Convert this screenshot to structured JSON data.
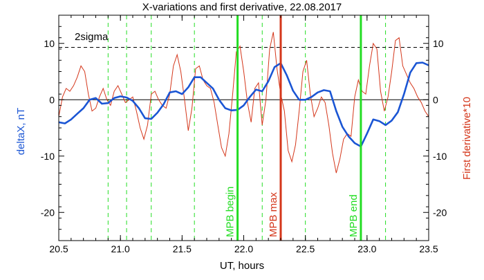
{
  "chart_data": {
    "type": "line",
    "title": "X-variations and first derivative, 22.08.2017",
    "xlabel": "UT, hours",
    "ylabel_left": "deltaX, nT",
    "ylabel_right": "First derivative*10",
    "xlim": [
      20.5,
      23.5
    ],
    "ylim": [
      -25,
      15
    ],
    "x_ticks": [
      "20.5",
      "21.0",
      "21.5",
      "22.0",
      "22.5",
      "23.0",
      "23.5"
    ],
    "x_tick_values": [
      20.5,
      21.0,
      21.5,
      22.0,
      22.5,
      23.0,
      23.5
    ],
    "y_ticks_left": [
      "-20",
      "-10",
      "0",
      "10"
    ],
    "y_ticks_right": [
      "-20",
      "-10",
      "0",
      "10"
    ],
    "y_tick_values": [
      -20,
      -10,
      0,
      10
    ],
    "threshold_label": "2sigma",
    "threshold_value": 9.3,
    "zero_line": 0,
    "grid": false,
    "colors": {
      "deltaX": "#1a55d4",
      "derivative": "#d4361a",
      "markers_green": "#22dd22",
      "marker_red": "#d4361a",
      "axes": "#000000",
      "left_label": "#1a55d4",
      "right_label": "#d4361a"
    },
    "dashed_verticals": [
      20.9,
      21.05,
      21.25,
      21.6,
      22.15,
      22.5,
      23.15
    ],
    "markers": [
      {
        "x": 21.95,
        "label": "MPB begin",
        "color": "#22dd22"
      },
      {
        "x": 22.3,
        "label": "MPB max",
        "color": "#d4361a"
      },
      {
        "x": 22.95,
        "label": "MPB end",
        "color": "#22dd22"
      }
    ],
    "series": [
      {
        "name": "deltaX",
        "axis": "left",
        "color": "#1a55d4",
        "x": [
          20.5,
          20.55,
          20.6,
          20.65,
          20.7,
          20.75,
          20.8,
          20.85,
          20.9,
          20.95,
          21.0,
          21.05,
          21.1,
          21.15,
          21.2,
          21.25,
          21.3,
          21.35,
          21.4,
          21.45,
          21.5,
          21.55,
          21.6,
          21.65,
          21.7,
          21.75,
          21.8,
          21.85,
          21.9,
          21.95,
          22.0,
          22.05,
          22.1,
          22.15,
          22.2,
          22.25,
          22.3,
          22.35,
          22.4,
          22.45,
          22.5,
          22.55,
          22.6,
          22.65,
          22.7,
          22.75,
          22.8,
          22.85,
          22.9,
          22.95,
          23.0,
          23.05,
          23.1,
          23.15,
          23.2,
          23.25,
          23.3,
          23.35,
          23.4,
          23.45,
          23.5
        ],
        "y": [
          -4.0,
          -4.2,
          -3.5,
          -2.5,
          -1.5,
          0.0,
          0.3,
          -0.7,
          -0.6,
          0.3,
          0.6,
          0.4,
          -0.2,
          -1.5,
          -3.3,
          -3.4,
          -2.3,
          -0.8,
          1.3,
          1.5,
          1.0,
          2.2,
          4.0,
          4.0,
          3.0,
          2.0,
          0.0,
          -1.5,
          -1.9,
          -1.8,
          -1.0,
          0.5,
          1.8,
          1.5,
          3.3,
          5.8,
          6.5,
          4.3,
          1.6,
          0.0,
          0.0,
          0.5,
          1.3,
          1.7,
          1.5,
          -2.0,
          -4.8,
          -6.5,
          -7.7,
          -8.3,
          -6.0,
          -3.5,
          -3.8,
          -4.5,
          -3.7,
          -2.2,
          1.0,
          4.8,
          6.5,
          6.6,
          6.1
        ]
      },
      {
        "name": "First derivative*10",
        "axis": "right",
        "color": "#d4361a",
        "x": [
          20.5,
          20.53,
          20.56,
          20.59,
          20.62,
          20.65,
          20.68,
          20.71,
          20.74,
          20.77,
          20.8,
          20.83,
          20.86,
          20.89,
          20.92,
          20.95,
          20.98,
          21.01,
          21.04,
          21.07,
          21.1,
          21.13,
          21.16,
          21.19,
          21.22,
          21.25,
          21.28,
          21.31,
          21.34,
          21.37,
          21.4,
          21.43,
          21.46,
          21.49,
          21.52,
          21.55,
          21.58,
          21.61,
          21.64,
          21.67,
          21.7,
          21.73,
          21.76,
          21.79,
          21.82,
          21.85,
          21.88,
          21.91,
          21.94,
          21.97,
          22.0,
          22.03,
          22.06,
          22.09,
          22.12,
          22.15,
          22.18,
          22.21,
          22.24,
          22.27,
          22.3,
          22.33,
          22.36,
          22.39,
          22.42,
          22.45,
          22.48,
          22.51,
          22.54,
          22.57,
          22.6,
          22.63,
          22.66,
          22.69,
          22.72,
          22.75,
          22.78,
          22.81,
          22.84,
          22.87,
          22.9,
          22.93,
          22.96,
          22.99,
          23.02,
          23.05,
          23.08,
          23.11,
          23.14,
          23.17,
          23.2,
          23.23,
          23.26,
          23.29,
          23.32,
          23.35,
          23.38,
          23.41,
          23.44,
          23.47,
          23.5
        ],
        "y": [
          -3.0,
          0.5,
          2.0,
          1.5,
          2.5,
          4.0,
          6.0,
          5.0,
          1.0,
          -2.0,
          -1.5,
          0.5,
          2.0,
          0.0,
          -1.0,
          1.5,
          2.5,
          1.0,
          -0.5,
          0.0,
          0.5,
          -2.0,
          -5.0,
          -7.0,
          -4.5,
          1.0,
          1.5,
          0.0,
          -1.0,
          -1.5,
          1.0,
          6.0,
          8.0,
          5.0,
          0.0,
          -5.5,
          -1.5,
          5.5,
          6.0,
          3.5,
          2.5,
          2.0,
          -0.5,
          -4.5,
          -8.5,
          -10.0,
          -6.0,
          1.0,
          8.5,
          9.5,
          5.0,
          -0.5,
          -4.0,
          2.0,
          3.0,
          -4.5,
          0.0,
          9.0,
          12.0,
          5.5,
          1.0,
          -2.0,
          -9.0,
          -11.0,
          -8.0,
          -2.0,
          5.0,
          7.0,
          1.0,
          -3.0,
          -1.5,
          0.5,
          -0.5,
          -4.5,
          -9.5,
          -13.0,
          -10.5,
          -7.0,
          -6.0,
          -6.5,
          0.5,
          3.5,
          1.5,
          1.0,
          6.0,
          10.0,
          9.0,
          1.5,
          -2.0,
          0.5,
          5.0,
          10.5,
          11.0,
          6.0,
          4.5,
          3.0,
          2.0,
          0.5,
          -0.5,
          -2.0,
          -3.0
        ]
      }
    ]
  }
}
